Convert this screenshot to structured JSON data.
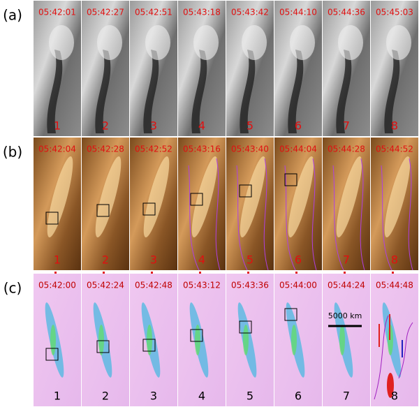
{
  "rows": [
    {
      "label": "(a)",
      "panels": [
        {
          "time": "05:42:01",
          "number": "1"
        },
        {
          "time": "05:42:27",
          "number": "2"
        },
        {
          "time": "05:42:51",
          "number": "3"
        },
        {
          "time": "05:43:18",
          "number": "4"
        },
        {
          "time": "05:43:42",
          "number": "5"
        },
        {
          "time": "05:44:10",
          "number": "6"
        },
        {
          "time": "05:44:36",
          "number": "7"
        },
        {
          "time": "05:45:03",
          "number": "8"
        }
      ]
    },
    {
      "label": "(b)",
      "panels": [
        {
          "time": "05:42:04",
          "number": "1"
        },
        {
          "time": "05:42:28",
          "number": "2"
        },
        {
          "time": "05:42:52",
          "number": "3"
        },
        {
          "time": "05:43:16",
          "number": "4"
        },
        {
          "time": "05:43:40",
          "number": "5"
        },
        {
          "time": "05:44:04",
          "number": "6"
        },
        {
          "time": "05:44:28",
          "number": "7"
        },
        {
          "time": "05:44:52",
          "number": "8"
        }
      ]
    },
    {
      "label": "(c)",
      "panels": [
        {
          "time": "05:42:00",
          "number": "1"
        },
        {
          "time": "05:42:24",
          "number": "2"
        },
        {
          "time": "05:42:48",
          "number": "3"
        },
        {
          "time": "05:43:12",
          "number": "4"
        },
        {
          "time": "05:43:36",
          "number": "5"
        },
        {
          "time": "05:44:00",
          "number": "6"
        },
        {
          "time": "05:44:24",
          "number": "7"
        },
        {
          "time": "05:44:48",
          "number": "8"
        }
      ]
    }
  ],
  "scale_bar": "5000 km"
}
